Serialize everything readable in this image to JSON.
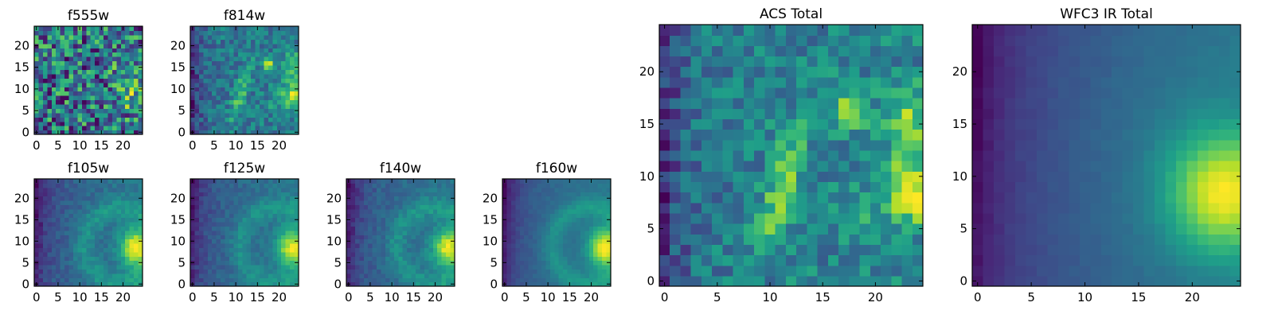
{
  "colormap": "viridis",
  "frame_color": "#000000",
  "chart_data": [
    {
      "id": "f555w",
      "type": "heatmap",
      "title": "f555w",
      "grid": false,
      "xlim": [
        -0.5,
        24.5
      ],
      "ylim": [
        -0.5,
        24.5
      ],
      "xticks": [
        "0",
        "5",
        "10",
        "15",
        "20"
      ],
      "yticks": [
        "0",
        "5",
        "10",
        "15",
        "20"
      ],
      "pattern": "noise",
      "seed": 11
    },
    {
      "id": "f814w",
      "type": "heatmap",
      "title": "f814w",
      "grid": false,
      "xlim": [
        -0.5,
        24.5
      ],
      "ylim": [
        -0.5,
        24.5
      ],
      "xticks": [
        "0",
        "5",
        "10",
        "15",
        "20"
      ],
      "yticks": [
        "0",
        "5",
        "10",
        "15",
        "20"
      ],
      "pattern": "acs",
      "seed": 23
    },
    {
      "id": "f105w",
      "type": "heatmap",
      "title": "f105w",
      "grid": false,
      "xlim": [
        -0.5,
        24.5
      ],
      "ylim": [
        -0.5,
        24.5
      ],
      "xticks": [
        "0",
        "5",
        "10",
        "15",
        "20"
      ],
      "yticks": [
        "0",
        "5",
        "10",
        "15",
        "20"
      ],
      "pattern": "ir",
      "seed": 37
    },
    {
      "id": "f125w",
      "type": "heatmap",
      "title": "f125w",
      "grid": false,
      "xlim": [
        -0.5,
        24.5
      ],
      "ylim": [
        -0.5,
        24.5
      ],
      "xticks": [
        "0",
        "5",
        "10",
        "15",
        "20"
      ],
      "yticks": [
        "0",
        "5",
        "10",
        "15",
        "20"
      ],
      "pattern": "ir",
      "seed": 41
    },
    {
      "id": "f140w",
      "type": "heatmap",
      "title": "f140w",
      "grid": false,
      "xlim": [
        -0.5,
        24.5
      ],
      "ylim": [
        -0.5,
        24.5
      ],
      "xticks": [
        "0",
        "5",
        "10",
        "15",
        "20"
      ],
      "yticks": [
        "0",
        "5",
        "10",
        "15",
        "20"
      ],
      "pattern": "ir",
      "seed": 53
    },
    {
      "id": "f160w",
      "type": "heatmap",
      "title": "f160w",
      "grid": false,
      "xlim": [
        -0.5,
        24.5
      ],
      "ylim": [
        -0.5,
        24.5
      ],
      "xticks": [
        "0",
        "5",
        "10",
        "15",
        "20"
      ],
      "yticks": [
        "0",
        "5",
        "10",
        "15",
        "20"
      ],
      "pattern": "ir_smooth",
      "seed": 61
    },
    {
      "id": "acs_total",
      "type": "heatmap",
      "title": "ACS Total",
      "grid": false,
      "xlim": [
        -0.5,
        24.5
      ],
      "ylim": [
        -0.5,
        24.5
      ],
      "xticks": [
        "0",
        "5",
        "10",
        "15",
        "20"
      ],
      "yticks": [
        "0",
        "5",
        "10",
        "15",
        "20"
      ],
      "pattern": "acs",
      "seed": 71
    },
    {
      "id": "wfc3_ir_total",
      "type": "heatmap",
      "title": "WFC3 IR Total",
      "grid": false,
      "xlim": [
        -0.5,
        24.5
      ],
      "ylim": [
        -0.5,
        24.5
      ],
      "xticks": [
        "0",
        "5",
        "10",
        "15",
        "20"
      ],
      "yticks": [
        "0",
        "5",
        "10",
        "15",
        "20"
      ],
      "pattern": "ir_total",
      "seed": 83
    }
  ]
}
